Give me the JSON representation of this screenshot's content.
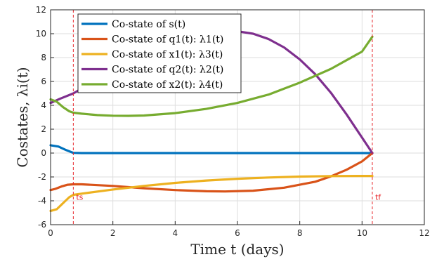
{
  "chart_data": {
    "type": "line",
    "xlabel": "Time t (days)",
    "ylabel": "Costates, λi(t)",
    "xlim": [
      0,
      12
    ],
    "ylim": [
      -6,
      12
    ],
    "xticks": [
      "0",
      "2",
      "4",
      "6",
      "8",
      "10",
      "12"
    ],
    "yticks": [
      "-6",
      "-4",
      "-2",
      "0",
      "2",
      "4",
      "6",
      "8",
      "10",
      "12"
    ],
    "grid": true,
    "legend_position": "top-left",
    "markers": [
      {
        "label": "ts",
        "x": 0.73,
        "color": "#e8262b"
      },
      {
        "label": "tf",
        "x": 10.33,
        "color": "#e8262b"
      }
    ],
    "series": [
      {
        "name": "Co-state of s(t)",
        "color": "#0072bd",
        "x": [
          0,
          0.25,
          0.5,
          0.73,
          1,
          2,
          4,
          6,
          8,
          10,
          10.33
        ],
        "y": [
          0.65,
          0.55,
          0.25,
          0.02,
          0,
          0,
          0,
          0,
          0,
          0,
          0
        ]
      },
      {
        "name": "Co-state of q1(t): λ1(t)",
        "color": "#d95319",
        "x": [
          0,
          0.15,
          0.35,
          0.55,
          0.73,
          1,
          2,
          3,
          4,
          5,
          5.6,
          6.5,
          7.5,
          8.5,
          9,
          9.5,
          10,
          10.33
        ],
        "y": [
          -3.1,
          -3.0,
          -2.8,
          -2.65,
          -2.62,
          -2.62,
          -2.75,
          -2.95,
          -3.1,
          -3.2,
          -3.22,
          -3.15,
          -2.9,
          -2.4,
          -1.95,
          -1.4,
          -0.7,
          0
        ]
      },
      {
        "name": "Co-state of x1(t): λ3(t)",
        "color": "#edb120",
        "x": [
          0,
          0.2,
          0.4,
          0.6,
          0.73,
          1,
          2,
          3,
          4,
          5,
          6,
          7,
          8,
          9,
          10,
          10.33
        ],
        "y": [
          -4.85,
          -4.7,
          -4.2,
          -3.7,
          -3.5,
          -3.4,
          -3.05,
          -2.75,
          -2.5,
          -2.3,
          -2.15,
          -2.05,
          -1.97,
          -1.93,
          -1.92,
          -1.92
        ]
      },
      {
        "name": "Co-state of q2(t): λ2(t)",
        "color": "#7e2f8e",
        "x": [
          0,
          0.3,
          0.73,
          1.0,
          6.0,
          6.5,
          7.0,
          7.5,
          8.0,
          8.5,
          9.0,
          9.5,
          10.0,
          10.33
        ],
        "y": [
          4.2,
          4.55,
          5.0,
          5.4,
          10.2,
          10.0,
          9.55,
          8.85,
          7.85,
          6.6,
          5.05,
          3.25,
          1.3,
          0
        ]
      },
      {
        "name": "Co-state of x2(t): λ4(t)",
        "color": "#77ac30",
        "x": [
          0,
          0.2,
          0.4,
          0.6,
          0.73,
          1,
          1.5,
          2,
          2.5,
          3,
          4,
          5,
          6,
          7,
          8,
          9,
          10,
          10.33
        ],
        "y": [
          4.5,
          4.3,
          3.85,
          3.5,
          3.38,
          3.3,
          3.18,
          3.13,
          3.12,
          3.15,
          3.35,
          3.7,
          4.2,
          4.9,
          5.9,
          7.05,
          8.5,
          9.75
        ]
      }
    ]
  }
}
